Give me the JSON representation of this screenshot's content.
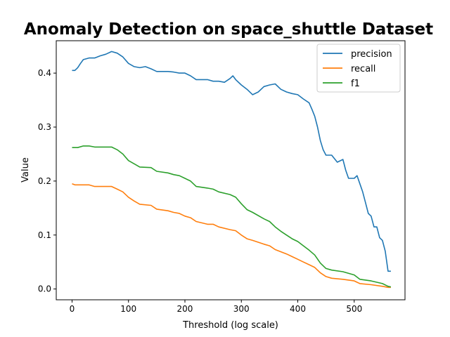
{
  "chart_data": {
    "type": "line",
    "title": "Anomaly Detection on space_shuttle Dataset",
    "xlabel": "Threshold (log scale)",
    "ylabel": "Value",
    "xlim": [
      -28,
      590
    ],
    "ylim": [
      -0.02,
      0.46
    ],
    "xticks": [
      0,
      100,
      200,
      300,
      400,
      500
    ],
    "yticks": [
      0.0,
      0.1,
      0.2,
      0.3,
      0.4
    ],
    "grid": false,
    "legend_position": "top-right",
    "series": [
      {
        "name": "precision",
        "color": "#1f77b4",
        "points": [
          [
            0,
            0.405
          ],
          [
            5,
            0.405
          ],
          [
            10,
            0.41
          ],
          [
            15,
            0.418
          ],
          [
            20,
            0.425
          ],
          [
            30,
            0.428
          ],
          [
            40,
            0.428
          ],
          [
            50,
            0.432
          ],
          [
            60,
            0.435
          ],
          [
            70,
            0.44
          ],
          [
            80,
            0.437
          ],
          [
            90,
            0.43
          ],
          [
            100,
            0.418
          ],
          [
            110,
            0.412
          ],
          [
            120,
            0.41
          ],
          [
            130,
            0.412
          ],
          [
            140,
            0.408
          ],
          [
            150,
            0.403
          ],
          [
            160,
            0.403
          ],
          [
            170,
            0.403
          ],
          [
            180,
            0.402
          ],
          [
            190,
            0.4
          ],
          [
            200,
            0.4
          ],
          [
            210,
            0.395
          ],
          [
            220,
            0.388
          ],
          [
            230,
            0.388
          ],
          [
            240,
            0.388
          ],
          [
            250,
            0.385
          ],
          [
            260,
            0.385
          ],
          [
            270,
            0.383
          ],
          [
            280,
            0.39
          ],
          [
            285,
            0.395
          ],
          [
            290,
            0.388
          ],
          [
            300,
            0.378
          ],
          [
            310,
            0.37
          ],
          [
            320,
            0.36
          ],
          [
            330,
            0.365
          ],
          [
            340,
            0.375
          ],
          [
            350,
            0.378
          ],
          [
            360,
            0.38
          ],
          [
            370,
            0.37
          ],
          [
            380,
            0.365
          ],
          [
            390,
            0.362
          ],
          [
            400,
            0.36
          ],
          [
            410,
            0.352
          ],
          [
            420,
            0.345
          ],
          [
            425,
            0.333
          ],
          [
            430,
            0.32
          ],
          [
            435,
            0.3
          ],
          [
            440,
            0.275
          ],
          [
            445,
            0.258
          ],
          [
            450,
            0.248
          ],
          [
            460,
            0.248
          ],
          [
            470,
            0.235
          ],
          [
            480,
            0.24
          ],
          [
            485,
            0.22
          ],
          [
            490,
            0.205
          ],
          [
            500,
            0.205
          ],
          [
            505,
            0.21
          ],
          [
            510,
            0.195
          ],
          [
            515,
            0.18
          ],
          [
            520,
            0.16
          ],
          [
            525,
            0.14
          ],
          [
            530,
            0.135
          ],
          [
            535,
            0.115
          ],
          [
            540,
            0.115
          ],
          [
            545,
            0.095
          ],
          [
            550,
            0.09
          ],
          [
            555,
            0.07
          ],
          [
            560,
            0.033
          ],
          [
            565,
            0.033
          ]
        ]
      },
      {
        "name": "recall",
        "color": "#ff7f0e",
        "points": [
          [
            0,
            0.195
          ],
          [
            5,
            0.193
          ],
          [
            20,
            0.193
          ],
          [
            30,
            0.193
          ],
          [
            40,
            0.19
          ],
          [
            70,
            0.19
          ],
          [
            80,
            0.185
          ],
          [
            90,
            0.18
          ],
          [
            100,
            0.17
          ],
          [
            110,
            0.163
          ],
          [
            120,
            0.157
          ],
          [
            140,
            0.155
          ],
          [
            150,
            0.148
          ],
          [
            170,
            0.145
          ],
          [
            180,
            0.142
          ],
          [
            190,
            0.14
          ],
          [
            200,
            0.135
          ],
          [
            210,
            0.132
          ],
          [
            220,
            0.125
          ],
          [
            240,
            0.12
          ],
          [
            250,
            0.12
          ],
          [
            260,
            0.115
          ],
          [
            280,
            0.11
          ],
          [
            290,
            0.108
          ],
          [
            300,
            0.1
          ],
          [
            310,
            0.093
          ],
          [
            320,
            0.09
          ],
          [
            340,
            0.083
          ],
          [
            350,
            0.08
          ],
          [
            360,
            0.073
          ],
          [
            380,
            0.065
          ],
          [
            390,
            0.06
          ],
          [
            400,
            0.055
          ],
          [
            410,
            0.05
          ],
          [
            420,
            0.045
          ],
          [
            430,
            0.04
          ],
          [
            440,
            0.03
          ],
          [
            450,
            0.023
          ],
          [
            460,
            0.02
          ],
          [
            480,
            0.018
          ],
          [
            500,
            0.015
          ],
          [
            510,
            0.01
          ],
          [
            530,
            0.008
          ],
          [
            550,
            0.005
          ],
          [
            560,
            0.003
          ],
          [
            565,
            0.003
          ]
        ]
      },
      {
        "name": "f1",
        "color": "#2ca02c",
        "points": [
          [
            0,
            0.262
          ],
          [
            10,
            0.262
          ],
          [
            20,
            0.265
          ],
          [
            30,
            0.265
          ],
          [
            40,
            0.263
          ],
          [
            70,
            0.263
          ],
          [
            80,
            0.258
          ],
          [
            90,
            0.25
          ],
          [
            100,
            0.238
          ],
          [
            110,
            0.232
          ],
          [
            120,
            0.226
          ],
          [
            140,
            0.225
          ],
          [
            150,
            0.218
          ],
          [
            170,
            0.215
          ],
          [
            180,
            0.212
          ],
          [
            190,
            0.21
          ],
          [
            200,
            0.205
          ],
          [
            210,
            0.2
          ],
          [
            220,
            0.19
          ],
          [
            240,
            0.187
          ],
          [
            250,
            0.185
          ],
          [
            260,
            0.18
          ],
          [
            280,
            0.175
          ],
          [
            290,
            0.17
          ],
          [
            300,
            0.158
          ],
          [
            310,
            0.147
          ],
          [
            320,
            0.142
          ],
          [
            340,
            0.13
          ],
          [
            350,
            0.125
          ],
          [
            360,
            0.115
          ],
          [
            370,
            0.107
          ],
          [
            380,
            0.1
          ],
          [
            390,
            0.093
          ],
          [
            400,
            0.088
          ],
          [
            410,
            0.08
          ],
          [
            420,
            0.072
          ],
          [
            430,
            0.063
          ],
          [
            440,
            0.048
          ],
          [
            450,
            0.038
          ],
          [
            460,
            0.035
          ],
          [
            480,
            0.032
          ],
          [
            500,
            0.026
          ],
          [
            510,
            0.018
          ],
          [
            530,
            0.015
          ],
          [
            550,
            0.01
          ],
          [
            560,
            0.005
          ],
          [
            565,
            0.004
          ]
        ]
      }
    ]
  }
}
